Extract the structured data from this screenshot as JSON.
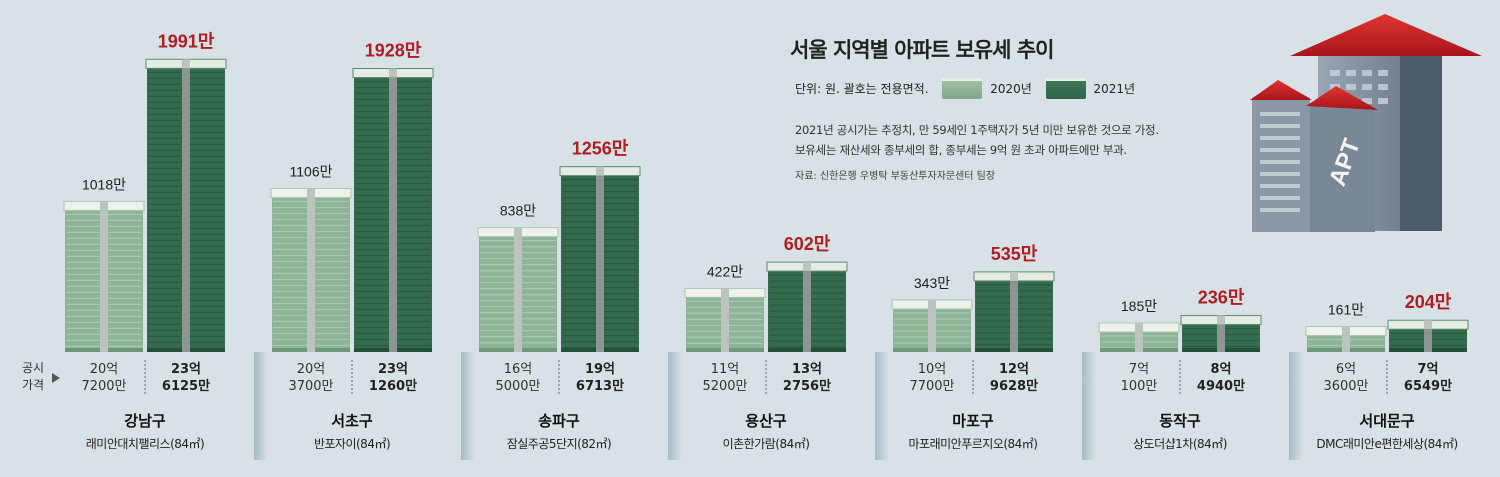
{
  "title": "서울 지역별 아파트 보유세 추이",
  "legend": {
    "unit": "단위: 원. 괄호는 전용면적.",
    "label_2020": "2020년",
    "label_2021": "2021년"
  },
  "notes": [
    "2021년 공시가는 추정치, 만 59세인 1주택자가 5년 미만 보유한 것으로 가정.",
    "보유세는 재산세와 종부세의 합, 종부세는 9억 원 초과 아파트에만 부과."
  ],
  "source": "자료: 신한은행 우병탁 부동산투자자문센터 팀장",
  "row_label": {
    "line1": "공시",
    "line2": "가격"
  },
  "building_sign": "APT",
  "colors": {
    "bg": "#d7e1e6",
    "stack_2020": "#8db497",
    "stack_2021": "#356c4f",
    "highlight": "#b01e23",
    "roof": "#c8202a"
  },
  "chart_data": {
    "type": "bar",
    "title": "서울 지역별 아파트 보유세 추이",
    "unit": "만원",
    "categories": [
      "강남구",
      "서초구",
      "송파구",
      "용산구",
      "마포구",
      "동작구",
      "서대문구"
    ],
    "apartments": [
      "래미안대치팰리스(84㎡)",
      "반포자이(84㎡)",
      "잠실주공5단지(82㎡)",
      "이촌한가람(84㎡)",
      "마포래미안푸르지오(84㎡)",
      "상도더샵1차(84㎡)",
      "DMC래미안e편한세상(84㎡)"
    ],
    "series": [
      {
        "name": "2020년",
        "values": [
          1018,
          1106,
          838,
          422,
          343,
          185,
          161
        ]
      },
      {
        "name": "2021년",
        "values": [
          1991,
          1928,
          1256,
          602,
          535,
          236,
          204
        ]
      }
    ],
    "value_labels_2020": [
      "1018만",
      "1106만",
      "838만",
      "422만",
      "343만",
      "185만",
      "161만"
    ],
    "value_labels_2021": [
      "1991만",
      "1928만",
      "1256만",
      "602만",
      "535만",
      "236만",
      "204만"
    ],
    "price_2020": [
      [
        "20억",
        "7200만"
      ],
      [
        "20억",
        "3700만"
      ],
      [
        "16억",
        "5000만"
      ],
      [
        "11억",
        "5200만"
      ],
      [
        "10억",
        "7700만"
      ],
      [
        "7억",
        "100만"
      ],
      [
        "6억",
        "3600만"
      ]
    ],
    "price_2021": [
      [
        "23억",
        "6125만"
      ],
      [
        "23억",
        "1260만"
      ],
      [
        "19억",
        "6713만"
      ],
      [
        "13억",
        "2756만"
      ],
      [
        "12억",
        "9628만"
      ],
      [
        "8억",
        "4940만"
      ],
      [
        "7억",
        "6549만"
      ]
    ],
    "ylim": [
      0,
      2000
    ]
  }
}
